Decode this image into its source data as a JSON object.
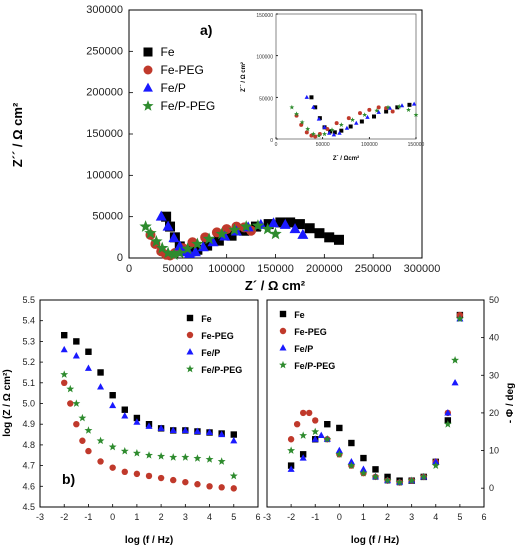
{
  "colors": {
    "Fe": "#000000",
    "Fe-PEG": "#c0392b",
    "Fe/P": "#1a1aff",
    "Fe/P-PEG": "#2e8b2e"
  },
  "markers": {
    "Fe": "square",
    "Fe-PEG": "circle",
    "Fe/P": "triangle",
    "Fe/P-PEG": "star"
  },
  "chart_data": [
    {
      "panel": "a)",
      "type": "scatter",
      "xlabel": "Z´ / Ω cm²",
      "ylabel": "Z´´ / Ω cm²",
      "xlim": [
        0,
        300000
      ],
      "ylim": [
        0,
        300000
      ],
      "xticks": [
        "0",
        "50000",
        "100000",
        "150000",
        "200000",
        "250000",
        "300000"
      ],
      "yticks": [
        "0",
        "50000",
        "100000",
        "150000",
        "200000",
        "250000",
        "300000"
      ],
      "legend": [
        "Fe",
        "Fe-PEG",
        "Fe/P",
        "Fe/P-PEG"
      ],
      "legend_position": "top-left",
      "series": [
        {
          "name": "Fe",
          "points": [
            [
              38000,
              50000
            ],
            [
              42000,
              38000
            ],
            [
              47000,
              25000
            ],
            [
              52000,
              14000
            ],
            [
              58000,
              9000
            ],
            [
              63000,
              8000
            ],
            [
              70000,
              10000
            ],
            [
              80000,
              15000
            ],
            [
              92000,
              21000
            ],
            [
              105000,
              27000
            ],
            [
              118000,
              33000
            ],
            [
              130000,
              38000
            ],
            [
              143000,
              41000
            ],
            [
              155000,
              43000
            ],
            [
              165000,
              43000
            ],
            [
              175000,
              41000
            ],
            [
              185000,
              36000
            ],
            [
              195000,
              30000
            ],
            [
              205000,
              25000
            ],
            [
              215000,
              22000
            ]
          ]
        },
        {
          "name": "Fe-PEG",
          "points": [
            [
              22000,
              28000
            ],
            [
              27000,
              17000
            ],
            [
              33000,
              8000
            ],
            [
              38000,
              4000
            ],
            [
              42000,
              3000
            ],
            [
              47000,
              6000
            ],
            [
              55000,
              12000
            ],
            [
              65000,
              19000
            ],
            [
              78000,
              25000
            ],
            [
              90000,
              31000
            ],
            [
              100000,
              35000
            ],
            [
              110000,
              38000
            ],
            [
              118000,
              37000
            ],
            [
              125000,
              33000
            ]
          ]
        },
        {
          "name": "Fe/P",
          "points": [
            [
              33000,
              50000
            ],
            [
              40000,
              38000
            ],
            [
              46000,
              24000
            ],
            [
              52000,
              14000
            ],
            [
              57000,
              7000
            ],
            [
              62000,
              5000
            ],
            [
              68000,
              7000
            ],
            [
              76000,
              13000
            ],
            [
              86000,
              19000
            ],
            [
              98000,
              26000
            ],
            [
              110000,
              32000
            ],
            [
              122000,
              37000
            ],
            [
              135000,
              40000
            ],
            [
              148000,
              42000
            ],
            [
              160000,
              40000
            ],
            [
              170000,
              35000
            ],
            [
              178000,
              28000
            ]
          ]
        },
        {
          "name": "Fe/P-PEG",
          "points": [
            [
              17000,
              38000
            ],
            [
              22000,
              30000
            ],
            [
              28000,
              20000
            ],
            [
              34000,
              12000
            ],
            [
              40000,
              6000
            ],
            [
              46000,
              4000
            ],
            [
              52000,
              6000
            ],
            [
              60000,
              11000
            ],
            [
              70000,
              17000
            ],
            [
              82000,
              23000
            ],
            [
              95000,
              29000
            ],
            [
              108000,
              34000
            ],
            [
              120000,
              38000
            ],
            [
              132000,
              39000
            ],
            [
              142000,
              35000
            ],
            [
              150000,
              29000
            ]
          ]
        }
      ],
      "inset": {
        "xlabel": "Z´ / Ωcm²",
        "ylabel": "Z´´ / Ω cm²",
        "xlim": [
          0,
          150000
        ],
        "ylim": [
          0,
          150000
        ],
        "xticks": [
          "0",
          "50000",
          "100000",
          "150000"
        ],
        "yticks": [
          "0",
          "50000",
          "100000",
          "150000"
        ]
      }
    },
    {
      "panel": "b)",
      "type": "scatter",
      "xlabel": "log (f / Hz)",
      "ylabel": "log (Z / Ω cm²)",
      "xlim": [
        -3,
        6
      ],
      "ylim": [
        4.5,
        5.5
      ],
      "xticks": [
        "-3",
        "-2",
        "-1",
        "0",
        "1",
        "2",
        "3",
        "4",
        "5",
        "6"
      ],
      "yticks": [
        "4.5",
        "4.6",
        "4.7",
        "4.8",
        "4.9",
        "5.0",
        "5.1",
        "5.2",
        "5.3",
        "5.4",
        "5.5"
      ],
      "legend": [
        "Fe",
        "Fe-PEG",
        "Fe/P",
        "Fe/P-PEG"
      ],
      "legend_position": "top-right",
      "series": [
        {
          "name": "Fe",
          "points": [
            [
              -2,
              5.33
            ],
            [
              -1.5,
              5.3
            ],
            [
              -1,
              5.25
            ],
            [
              -0.5,
              5.15
            ],
            [
              0,
              5.04
            ],
            [
              0.5,
              4.97
            ],
            [
              1,
              4.93
            ],
            [
              1.5,
              4.9
            ],
            [
              2,
              4.88
            ],
            [
              2.5,
              4.87
            ],
            [
              3,
              4.87
            ],
            [
              3.5,
              4.865
            ],
            [
              4,
              4.86
            ],
            [
              4.5,
              4.855
            ],
            [
              5,
              4.85
            ]
          ]
        },
        {
          "name": "Fe-PEG",
          "points": [
            [
              -2,
              5.1
            ],
            [
              -1.75,
              5.0
            ],
            [
              -1.5,
              4.9
            ],
            [
              -1.25,
              4.82
            ],
            [
              -1,
              4.77
            ],
            [
              -0.5,
              4.72
            ],
            [
              0,
              4.69
            ],
            [
              0.5,
              4.67
            ],
            [
              1,
              4.66
            ],
            [
              1.5,
              4.65
            ],
            [
              2,
              4.64
            ],
            [
              2.5,
              4.63
            ],
            [
              3,
              4.62
            ],
            [
              3.5,
              4.61
            ],
            [
              4,
              4.6
            ],
            [
              4.5,
              4.595
            ],
            [
              5,
              4.59
            ]
          ]
        },
        {
          "name": "Fe/P",
          "points": [
            [
              -2,
              5.26
            ],
            [
              -1.5,
              5.23
            ],
            [
              -1,
              5.17
            ],
            [
              -0.5,
              5.08
            ],
            [
              0,
              4.99
            ],
            [
              0.5,
              4.94
            ],
            [
              1,
              4.91
            ],
            [
              1.5,
              4.89
            ],
            [
              2,
              4.88
            ],
            [
              2.5,
              4.87
            ],
            [
              3,
              4.87
            ],
            [
              3.5,
              4.865
            ],
            [
              4,
              4.86
            ],
            [
              4.5,
              4.85
            ],
            [
              5,
              4.82
            ]
          ]
        },
        {
          "name": "Fe/P-PEG",
          "points": [
            [
              -2,
              5.14
            ],
            [
              -1.75,
              5.07
            ],
            [
              -1.5,
              5.0
            ],
            [
              -1.25,
              4.93
            ],
            [
              -1,
              4.87
            ],
            [
              -0.5,
              4.82
            ],
            [
              0,
              4.79
            ],
            [
              0.5,
              4.77
            ],
            [
              1,
              4.76
            ],
            [
              1.5,
              4.75
            ],
            [
              2,
              4.745
            ],
            [
              2.5,
              4.74
            ],
            [
              3,
              4.74
            ],
            [
              3.5,
              4.735
            ],
            [
              4,
              4.73
            ],
            [
              4.5,
              4.72
            ],
            [
              5,
              4.65
            ]
          ]
        }
      ]
    },
    {
      "panel": "",
      "type": "scatter",
      "xlabel": "log (f / Hz)",
      "ylabel": "- Φ / deg",
      "xlim": [
        -3,
        6
      ],
      "ylim": [
        -5,
        50
      ],
      "xticks": [
        "-3",
        "-2",
        "-1",
        "0",
        "1",
        "2",
        "3",
        "4",
        "5",
        "6"
      ],
      "yticks": [
        "0",
        "10",
        "20",
        "30",
        "40",
        "50"
      ],
      "legend": [
        "Fe",
        "Fe-PEG",
        "Fe/P",
        "Fe/P-PEG"
      ],
      "legend_position": "top-left",
      "series": [
        {
          "name": "Fe",
          "points": [
            [
              -2,
              6
            ],
            [
              -1.5,
              9
            ],
            [
              -1,
              13
            ],
            [
              -0.5,
              17
            ],
            [
              0,
              16
            ],
            [
              0.5,
              12
            ],
            [
              1,
              8
            ],
            [
              1.5,
              5
            ],
            [
              2,
              3
            ],
            [
              2.5,
              2
            ],
            [
              3,
              2
            ],
            [
              3.5,
              3
            ],
            [
              4,
              7
            ],
            [
              4.5,
              18
            ],
            [
              5,
              46
            ]
          ]
        },
        {
          "name": "Fe-PEG",
          "points": [
            [
              -2,
              13
            ],
            [
              -1.75,
              17
            ],
            [
              -1.5,
              20
            ],
            [
              -1.25,
              20
            ],
            [
              -1,
              18
            ],
            [
              -0.5,
              13
            ],
            [
              0,
              9
            ],
            [
              0.5,
              6
            ],
            [
              1,
              4
            ],
            [
              1.5,
              3
            ],
            [
              2,
              2
            ],
            [
              2.5,
              1.5
            ],
            [
              3,
              2
            ],
            [
              3.5,
              3
            ],
            [
              4,
              7
            ],
            [
              4.5,
              20
            ],
            [
              5,
              46
            ]
          ]
        },
        {
          "name": "Fe/P",
          "points": [
            [
              -2,
              5
            ],
            [
              -1.5,
              8
            ],
            [
              -1,
              13
            ],
            [
              -0.75,
              14
            ],
            [
              -0.5,
              13
            ],
            [
              0,
              10
            ],
            [
              0.5,
              7
            ],
            [
              1,
              5
            ],
            [
              1.5,
              3
            ],
            [
              2,
              2
            ],
            [
              2.5,
              1.5
            ],
            [
              3,
              2
            ],
            [
              3.5,
              3
            ],
            [
              4,
              7
            ],
            [
              4.5,
              20
            ],
            [
              4.8,
              28
            ],
            [
              5,
              45
            ]
          ]
        },
        {
          "name": "Fe/P-PEG",
          "points": [
            [
              -2,
              10
            ],
            [
              -1.5,
              14
            ],
            [
              -1,
              15
            ],
            [
              -0.5,
              13
            ],
            [
              0,
              9
            ],
            [
              0.5,
              6
            ],
            [
              1,
              4
            ],
            [
              1.5,
              3
            ],
            [
              2,
              2
            ],
            [
              2.5,
              1.5
            ],
            [
              3,
              2
            ],
            [
              3.5,
              3
            ],
            [
              4,
              6
            ],
            [
              4.5,
              17
            ],
            [
              4.8,
              34
            ],
            [
              5,
              45
            ]
          ]
        }
      ]
    }
  ]
}
